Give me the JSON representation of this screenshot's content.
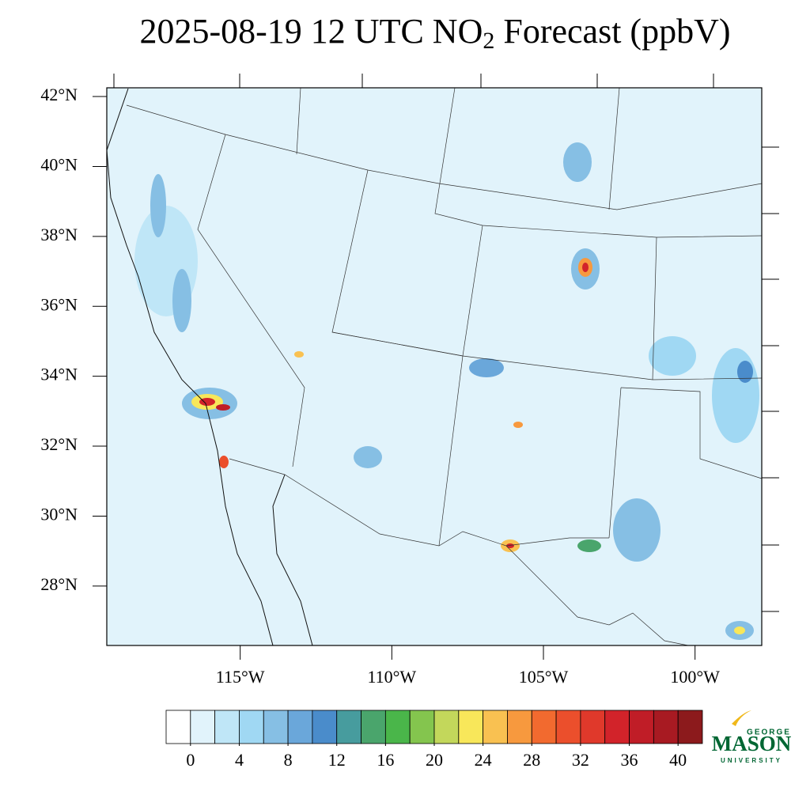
{
  "title": {
    "main": "2025-08-19 12 UTC NO",
    "sub": "2",
    "rest": " Forecast (ppbV)"
  },
  "map": {
    "lat_range": [
      26.3,
      42.25
    ],
    "lon_range": [
      -119.4,
      -97.8
    ],
    "lat_ticks": [
      {
        "value": 42,
        "label": "42°N"
      },
      {
        "value": 40,
        "label": "40°N"
      },
      {
        "value": 38,
        "label": "38°N"
      },
      {
        "value": 36,
        "label": "36°N"
      },
      {
        "value": 34,
        "label": "34°N"
      },
      {
        "value": 32,
        "label": "32°N"
      },
      {
        "value": 30,
        "label": "30°N"
      },
      {
        "value": 28,
        "label": "28°N"
      }
    ],
    "lon_ticks": [
      {
        "value": -115,
        "label": "115°W"
      },
      {
        "value": -110,
        "label": "110°W"
      },
      {
        "value": -105,
        "label": "105°W"
      },
      {
        "value": -100,
        "label": "100°W"
      }
    ]
  },
  "colorbar": {
    "range": [
      -2,
      42
    ],
    "colors": [
      "#ffffff",
      "#e1f3fb",
      "#bfe6f7",
      "#a0d8f3",
      "#86bfe4",
      "#6aa7da",
      "#4a8ccb",
      "#479c9e",
      "#4aa56c",
      "#4ab64a",
      "#84c54e",
      "#c3d75b",
      "#f8e75a",
      "#f9c151",
      "#f7993e",
      "#f26a2f",
      "#eb4f2c",
      "#e0392b",
      "#d2232a",
      "#c01d27",
      "#a81a22",
      "#8c1a1c"
    ],
    "ticks": [
      0,
      4,
      8,
      12,
      16,
      20,
      24,
      28,
      32,
      36,
      40
    ]
  },
  "logo": {
    "top": "GEORGE",
    "name": "MASON",
    "bottom": "UNIVERSITY"
  }
}
